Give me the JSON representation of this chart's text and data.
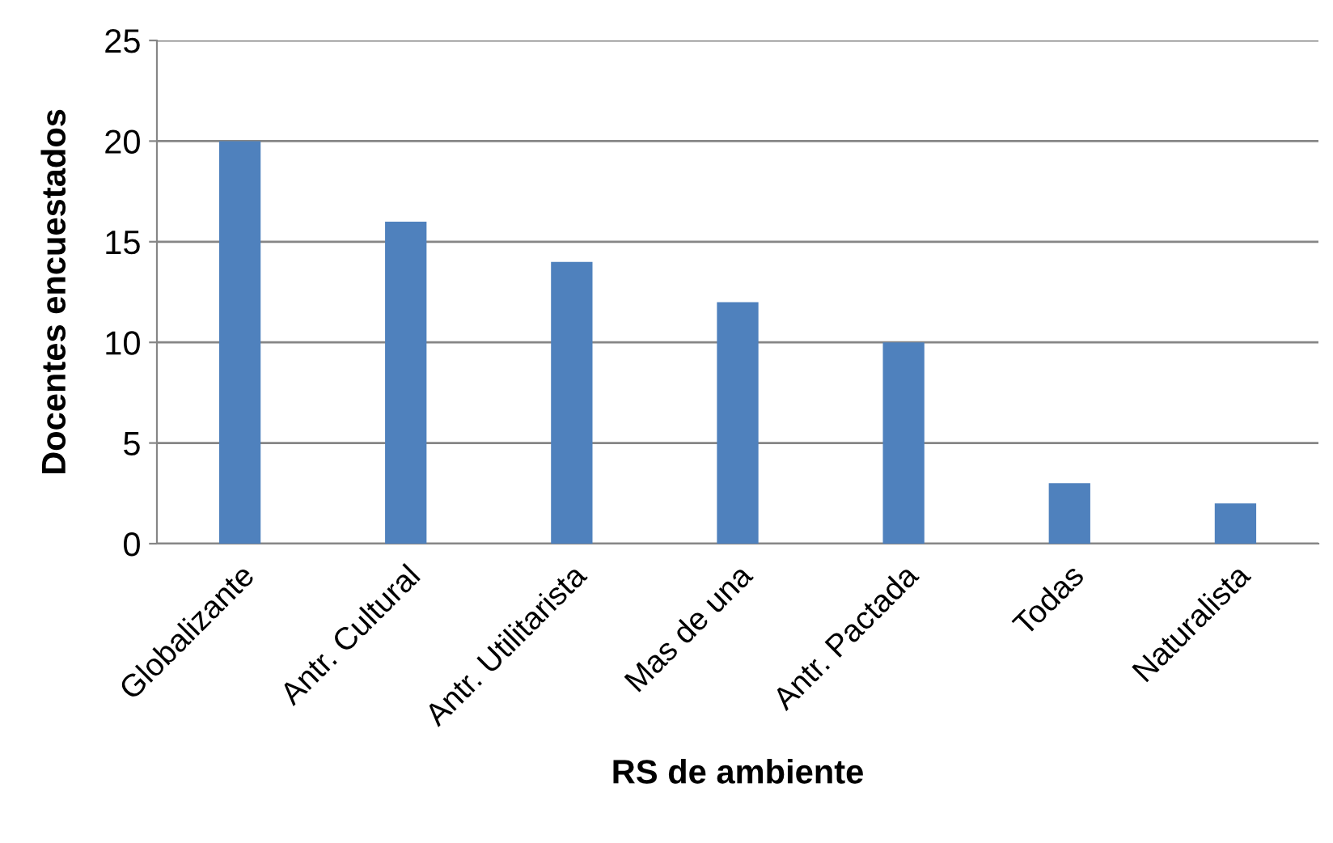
{
  "chart_data": {
    "type": "bar",
    "xlabel": "RS de ambiente",
    "ylabel": "Docentes encuestados",
    "categories": [
      "Globalizante",
      "Antr. Cultural",
      "Antr. Utilitarista",
      "Mas de una",
      "Antr. Pactada",
      "Todas",
      "Naturalista"
    ],
    "values": [
      20,
      16,
      14,
      12,
      10,
      3,
      2
    ],
    "color": "#4f81bd",
    "ylim": [
      0,
      25
    ],
    "yticks": [
      0,
      5,
      10,
      15,
      20,
      25
    ],
    "grid": "y",
    "legend": false
  }
}
